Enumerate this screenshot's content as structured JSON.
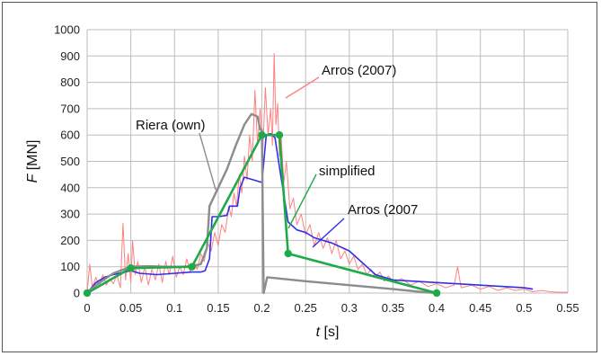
{
  "chart_data": {
    "type": "line",
    "xlabel": "t [s]",
    "ylabel": "F [MN]",
    "xlim": [
      0,
      0.55
    ],
    "ylim": [
      0,
      1000
    ],
    "xticks": [
      "0",
      "0.05",
      "0.1",
      "0.15",
      "0.2",
      "0.25",
      "0.3",
      "0.35",
      "0.4",
      "0.45",
      "0.5",
      "0.55"
    ],
    "yticks": [
      "0",
      "100",
      "200",
      "300",
      "400",
      "500",
      "600",
      "700",
      "800",
      "900",
      "1000"
    ],
    "grid": true,
    "legend": "none",
    "annotations": [
      {
        "text": "Arros (2007)",
        "series": "red"
      },
      {
        "text": "Riera (own)",
        "series": "gray"
      },
      {
        "text": "simplified",
        "series": "green"
      },
      {
        "text": "Arros (2007",
        "series": "blue"
      }
    ],
    "series": [
      {
        "key": "red",
        "color": "#ff8080",
        "width": 1,
        "markers": false,
        "points": [
          [
            0,
            0
          ],
          [
            0.003,
            110
          ],
          [
            0.006,
            20
          ],
          [
            0.01,
            60
          ],
          [
            0.014,
            25
          ],
          [
            0.018,
            70
          ],
          [
            0.022,
            30
          ],
          [
            0.026,
            55
          ],
          [
            0.03,
            35
          ],
          [
            0.034,
            70
          ],
          [
            0.038,
            20
          ],
          [
            0.041,
            265
          ],
          [
            0.044,
            50
          ],
          [
            0.047,
            150
          ],
          [
            0.05,
            40
          ],
          [
            0.052,
            200
          ],
          [
            0.055,
            70
          ],
          [
            0.058,
            120
          ],
          [
            0.062,
            40
          ],
          [
            0.066,
            100
          ],
          [
            0.07,
            30
          ],
          [
            0.074,
            90
          ],
          [
            0.078,
            50
          ],
          [
            0.082,
            110
          ],
          [
            0.086,
            40
          ],
          [
            0.09,
            120
          ],
          [
            0.094,
            70
          ],
          [
            0.098,
            140
          ],
          [
            0.102,
            60
          ],
          [
            0.106,
            100
          ],
          [
            0.11,
            70
          ],
          [
            0.114,
            130
          ],
          [
            0.118,
            80
          ],
          [
            0.122,
            120
          ],
          [
            0.126,
            90
          ],
          [
            0.13,
            150
          ],
          [
            0.134,
            120
          ],
          [
            0.138,
            190
          ],
          [
            0.142,
            160
          ],
          [
            0.146,
            230
          ],
          [
            0.15,
            180
          ],
          [
            0.154,
            260
          ],
          [
            0.158,
            230
          ],
          [
            0.162,
            330
          ],
          [
            0.165,
            290
          ],
          [
            0.168,
            380
          ],
          [
            0.171,
            330
          ],
          [
            0.174,
            450
          ],
          [
            0.177,
            380
          ],
          [
            0.18,
            520
          ],
          [
            0.183,
            430
          ],
          [
            0.186,
            600
          ],
          [
            0.189,
            500
          ],
          [
            0.192,
            770
          ],
          [
            0.195,
            560
          ],
          [
            0.198,
            700
          ],
          [
            0.201,
            540
          ],
          [
            0.204,
            780
          ],
          [
            0.207,
            600
          ],
          [
            0.21,
            700
          ],
          [
            0.212,
            560
          ],
          [
            0.214,
            910
          ],
          [
            0.216,
            640
          ],
          [
            0.218,
            720
          ],
          [
            0.22,
            520
          ],
          [
            0.222,
            600
          ],
          [
            0.225,
            420
          ],
          [
            0.228,
            500
          ],
          [
            0.232,
            320
          ],
          [
            0.236,
            360
          ],
          [
            0.24,
            260
          ],
          [
            0.245,
            300
          ],
          [
            0.25,
            220
          ],
          [
            0.255,
            260
          ],
          [
            0.26,
            180
          ],
          [
            0.265,
            230
          ],
          [
            0.27,
            170
          ],
          [
            0.275,
            210
          ],
          [
            0.28,
            150
          ],
          [
            0.285,
            200
          ],
          [
            0.29,
            130
          ],
          [
            0.295,
            160
          ],
          [
            0.3,
            110
          ],
          [
            0.305,
            140
          ],
          [
            0.31,
            90
          ],
          [
            0.315,
            110
          ],
          [
            0.32,
            70
          ],
          [
            0.325,
            90
          ],
          [
            0.33,
            60
          ],
          [
            0.335,
            80
          ],
          [
            0.34,
            45
          ],
          [
            0.345,
            65
          ],
          [
            0.35,
            40
          ],
          [
            0.36,
            55
          ],
          [
            0.37,
            30
          ],
          [
            0.38,
            45
          ],
          [
            0.39,
            25
          ],
          [
            0.4,
            35
          ],
          [
            0.41,
            20
          ],
          [
            0.42,
            30
          ],
          [
            0.424,
            100
          ],
          [
            0.428,
            20
          ],
          [
            0.44,
            30
          ],
          [
            0.45,
            15
          ],
          [
            0.46,
            25
          ],
          [
            0.47,
            10
          ],
          [
            0.48,
            20
          ],
          [
            0.49,
            10
          ],
          [
            0.5,
            15
          ],
          [
            0.51,
            5
          ],
          [
            0.52,
            10
          ],
          [
            0.53,
            5
          ],
          [
            0.54,
            3
          ],
          [
            0.55,
            3
          ]
        ]
      },
      {
        "key": "blue",
        "color": "#3030e8",
        "width": 1.6,
        "markers": false,
        "points": [
          [
            0,
            0
          ],
          [
            0.01,
            40
          ],
          [
            0.02,
            60
          ],
          [
            0.03,
            70
          ],
          [
            0.05,
            85
          ],
          [
            0.06,
            75
          ],
          [
            0.08,
            70
          ],
          [
            0.1,
            75
          ],
          [
            0.12,
            80
          ],
          [
            0.13,
            80
          ],
          [
            0.135,
            85
          ],
          [
            0.14,
            130
          ],
          [
            0.143,
            290
          ],
          [
            0.15,
            290
          ],
          [
            0.16,
            295
          ],
          [
            0.163,
            330
          ],
          [
            0.172,
            330
          ],
          [
            0.175,
            400
          ],
          [
            0.18,
            440
          ],
          [
            0.19,
            430
          ],
          [
            0.2,
            420
          ],
          [
            0.205,
            600
          ],
          [
            0.21,
            605
          ],
          [
            0.215,
            590
          ],
          [
            0.22,
            480
          ],
          [
            0.23,
            270
          ],
          [
            0.24,
            240
          ],
          [
            0.25,
            230
          ],
          [
            0.26,
            210
          ],
          [
            0.28,
            190
          ],
          [
            0.3,
            160
          ],
          [
            0.31,
            130
          ],
          [
            0.32,
            100
          ],
          [
            0.33,
            70
          ],
          [
            0.35,
            50
          ],
          [
            0.4,
            40
          ],
          [
            0.45,
            30
          ],
          [
            0.5,
            20
          ],
          [
            0.51,
            15
          ]
        ]
      },
      {
        "key": "gray",
        "color": "#8c8c8c",
        "width": 2.4,
        "markers": false,
        "points": [
          [
            0,
            0
          ],
          [
            0.01,
            30
          ],
          [
            0.03,
            75
          ],
          [
            0.05,
            100
          ],
          [
            0.07,
            102
          ],
          [
            0.09,
            100
          ],
          [
            0.11,
            100
          ],
          [
            0.12,
            102
          ],
          [
            0.13,
            110
          ],
          [
            0.137,
            170
          ],
          [
            0.14,
            330
          ],
          [
            0.15,
            400
          ],
          [
            0.16,
            470
          ],
          [
            0.17,
            560
          ],
          [
            0.18,
            640
          ],
          [
            0.188,
            680
          ],
          [
            0.195,
            670
          ],
          [
            0.198,
            620
          ],
          [
            0.2,
            620
          ],
          [
            0.202,
            0
          ],
          [
            0.206,
            60
          ],
          [
            0.25,
            45
          ],
          [
            0.3,
            30
          ],
          [
            0.35,
            15
          ],
          [
            0.38,
            5
          ],
          [
            0.4,
            0
          ]
        ]
      },
      {
        "key": "green",
        "color": "#1faa4a",
        "width": 2.6,
        "markers": true,
        "points": [
          [
            0,
            0
          ],
          [
            0.05,
            95
          ],
          [
            0.12,
            100
          ],
          [
            0.2,
            600
          ],
          [
            0.22,
            600
          ],
          [
            0.23,
            150
          ],
          [
            0.4,
            0
          ]
        ]
      }
    ]
  }
}
